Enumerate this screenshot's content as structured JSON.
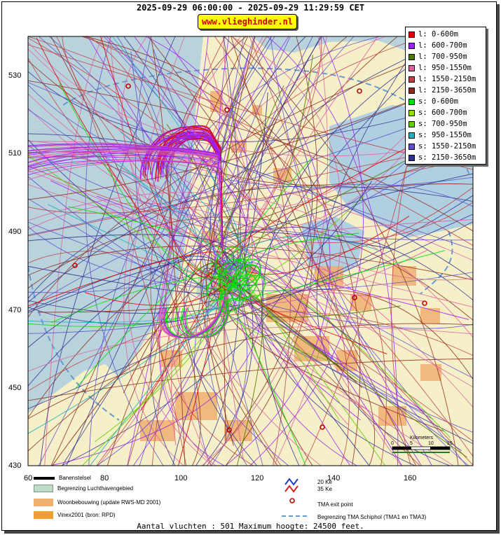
{
  "header": {
    "title": "2025-09-29 06:00:00 - 2025-09-29 11:29:59 CET",
    "site": "www.vlieghinder.nl"
  },
  "axes": {
    "x_ticks": [
      "60",
      "80",
      "100",
      "120",
      "140",
      "160"
    ],
    "y_ticks": [
      "530",
      "510",
      "490",
      "470",
      "450",
      "430"
    ]
  },
  "legend": [
    {
      "label": "l: 0-600m",
      "color": "#e00000"
    },
    {
      "label": "l: 600-700m",
      "color": "#a020f0"
    },
    {
      "label": "l: 700-950m",
      "color": "#4a7a00"
    },
    {
      "label": "l: 950-1550m",
      "color": "#e060a0"
    },
    {
      "label": "l: 1550-2150m",
      "color": "#c04040"
    },
    {
      "label": "l: 2150-3650m",
      "color": "#8b2a1a"
    },
    {
      "label": "s: 0-600m",
      "color": "#00e000"
    },
    {
      "label": "s: 600-700m",
      "color": "#90e000"
    },
    {
      "label": "s: 700-950m",
      "color": "#60d000"
    },
    {
      "label": "s: 950-1550m",
      "color": "#20b0c0"
    },
    {
      "label": "s: 1550-2150m",
      "color": "#6050d0"
    },
    {
      "label": "s: 2150-3650m",
      "color": "#303090"
    }
  ],
  "bottom_legend": {
    "runways": "Banenstelsel",
    "airport_boundary": "Begrenzing Luchthavengebied",
    "housing": "Woonbebouwing (update RWS-MD 2001)",
    "vinex": "Vinex2001 (bron: RPD)",
    "ke20": "20 Ke",
    "ke35": "35 Ke",
    "tma_exit": "TMA exit point",
    "tma_boundary": "Begrenzing TMA Schiphol  (TMA1 en TMA3)"
  },
  "scale_bar": {
    "title": "Kilometers",
    "ticks": [
      "0",
      "5",
      "10",
      "15"
    ]
  },
  "footer": "Aantal vluchten : 501 Maximum hoogte: 24500 feet.",
  "colors": {
    "sea": "#b9d3dc",
    "land": "#f5f0c8",
    "water_inland": "#b0cfe0",
    "urban": "#f0b070",
    "airport": "#c0dcc8"
  }
}
